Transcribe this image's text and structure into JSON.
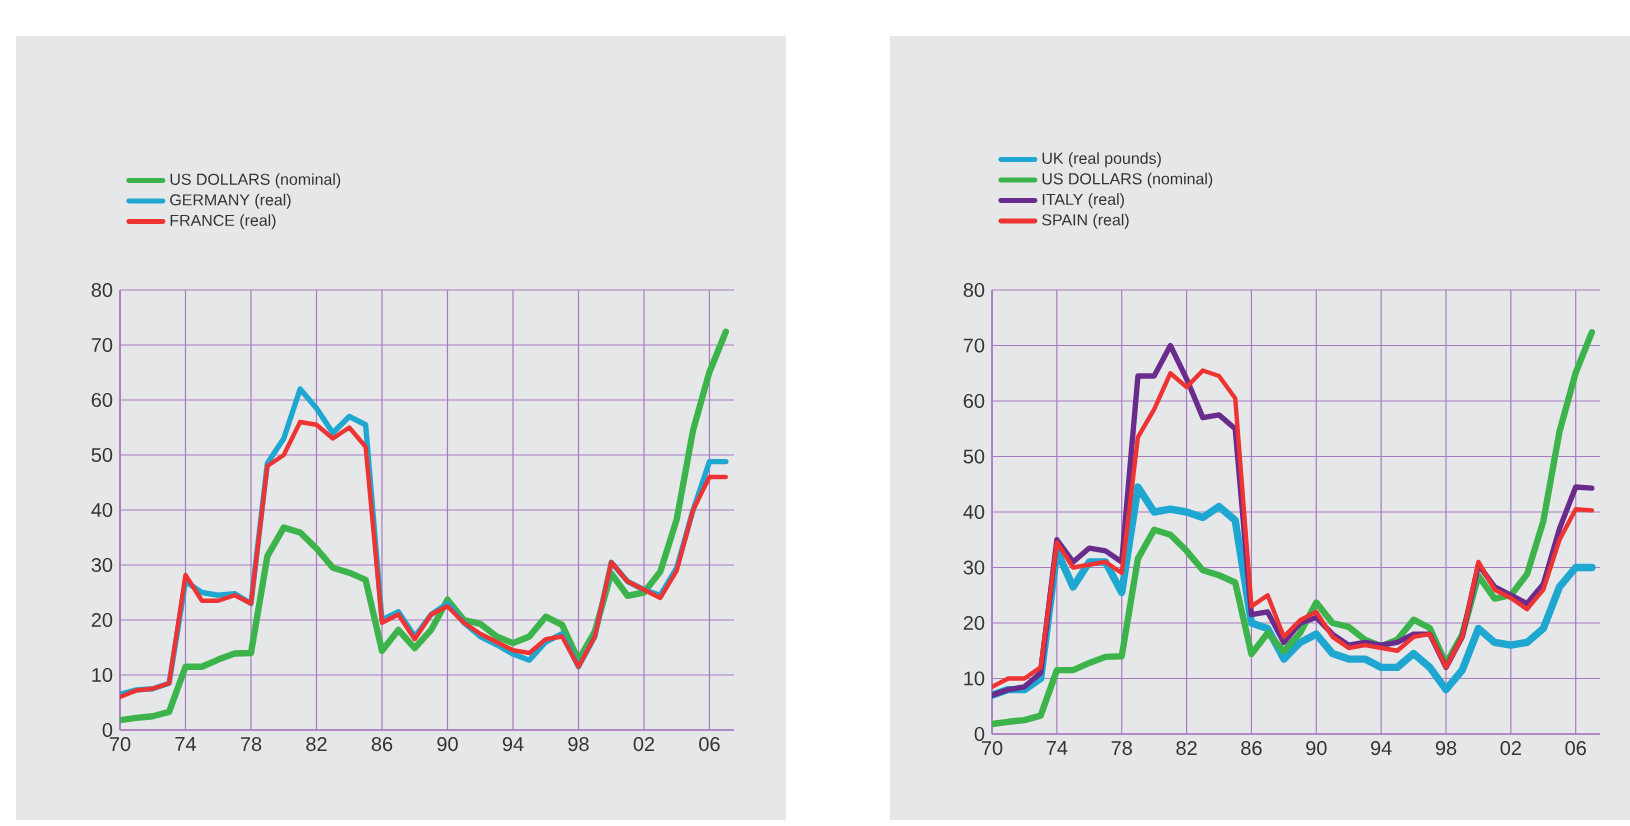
{
  "chart_data": [
    {
      "type": "line",
      "x": [
        1970,
        1971,
        1972,
        1973,
        1974,
        1975,
        1976,
        1977,
        1978,
        1979,
        1980,
        1981,
        1982,
        1983,
        1984,
        1985,
        1986,
        1987,
        1988,
        1989,
        1990,
        1991,
        1992,
        1993,
        1994,
        1995,
        1996,
        1997,
        1998,
        1999,
        2000,
        2001,
        2002,
        2003,
        2004,
        2005,
        2006,
        2007
      ],
      "xlim": [
        1970,
        2007.5
      ],
      "ylim": [
        0,
        80
      ],
      "xticks": [
        {
          "value": 1970,
          "label": "70"
        },
        {
          "value": 1974,
          "label": "74"
        },
        {
          "value": 1978,
          "label": "78"
        },
        {
          "value": 1982,
          "label": "82"
        },
        {
          "value": 1986,
          "label": "86"
        },
        {
          "value": 1990,
          "label": "90"
        },
        {
          "value": 1994,
          "label": "94"
        },
        {
          "value": 1998,
          "label": "98"
        },
        {
          "value": 2002,
          "label": "02"
        },
        {
          "value": 2006,
          "label": "06"
        }
      ],
      "yticks": [
        0,
        10,
        20,
        30,
        40,
        50,
        60,
        70,
        80
      ],
      "grid": true,
      "legend": "top left",
      "line_style": "solid",
      "series": [
        {
          "name": "US DOLLARS (nominal)",
          "color": "#3cb44b",
          "values": [
            1.8,
            2.2,
            2.5,
            3.3,
            11.5,
            11.5,
            12.8,
            13.9,
            14,
            31.6,
            36.8,
            35.9,
            33,
            29.5,
            28.6,
            27.3,
            14.4,
            18.2,
            14.9,
            18.2,
            23.7,
            20,
            19.3,
            17,
            15.8,
            17,
            20.6,
            19.1,
            12.7,
            17.9,
            28.5,
            24.4,
            25,
            28.8,
            38.3,
            54.5,
            65.1,
            72.4
          ]
        },
        {
          "name": "GERMANY (real)",
          "color": "#1ea7d0",
          "values": [
            6.5,
            7.3,
            7.5,
            8.5,
            27,
            25,
            24.5,
            24.8,
            23,
            48.5,
            53,
            62,
            58.5,
            54,
            57,
            55.5,
            20,
            21.5,
            17,
            21,
            23,
            19.5,
            17,
            15.5,
            13.8,
            12.7,
            16,
            17.5,
            11.5,
            17,
            30.5,
            27,
            25.5,
            24.5,
            29.5,
            40,
            48.8,
            48.8
          ]
        },
        {
          "name": "FRANCE (real)",
          "color": "#ee3333",
          "values": [
            6,
            7.2,
            7.5,
            8.5,
            28.2,
            23.5,
            23.5,
            24.5,
            23,
            48,
            50,
            56,
            55.5,
            53,
            55,
            51.5,
            19.5,
            21,
            16.5,
            21,
            22.5,
            19.5,
            17.5,
            16,
            14.5,
            14,
            16.5,
            17,
            11.5,
            17,
            30.5,
            27,
            25.5,
            24,
            29,
            40,
            46,
            46
          ]
        }
      ]
    },
    {
      "type": "line",
      "x": [
        1970,
        1971,
        1972,
        1973,
        1974,
        1975,
        1976,
        1977,
        1978,
        1979,
        1980,
        1981,
        1982,
        1983,
        1984,
        1985,
        1986,
        1987,
        1988,
        1989,
        1990,
        1991,
        1992,
        1993,
        1994,
        1995,
        1996,
        1997,
        1998,
        1999,
        2000,
        2001,
        2002,
        2003,
        2004,
        2005,
        2006,
        2007
      ],
      "xlim": [
        1970,
        2007.5
      ],
      "ylim": [
        0,
        80
      ],
      "xticks": [
        {
          "value": 1970,
          "label": "70"
        },
        {
          "value": 1974,
          "label": "74"
        },
        {
          "value": 1978,
          "label": "78"
        },
        {
          "value": 1982,
          "label": "82"
        },
        {
          "value": 1986,
          "label": "86"
        },
        {
          "value": 1990,
          "label": "90"
        },
        {
          "value": 1994,
          "label": "94"
        },
        {
          "value": 1998,
          "label": "98"
        },
        {
          "value": 2002,
          "label": "02"
        },
        {
          "value": 2006,
          "label": "06"
        }
      ],
      "yticks": [
        0,
        10,
        20,
        30,
        40,
        50,
        60,
        70,
        80
      ],
      "grid": true,
      "legend": "top left",
      "line_style": "solid",
      "series": [
        {
          "name": "UK (real pounds)",
          "color": "#1ea7d0",
          "values": [
            7,
            8,
            8,
            10,
            33,
            26.5,
            31,
            31,
            25.5,
            44.5,
            40,
            40.5,
            40,
            39,
            41,
            38.5,
            20,
            19,
            13.5,
            16.5,
            18,
            14.5,
            13.5,
            13.5,
            12,
            12,
            14.5,
            12,
            8,
            11.5,
            19,
            16.5,
            16,
            16.5,
            19,
            26.5,
            30,
            30
          ]
        },
        {
          "name": "US DOLLARS (nominal)",
          "color": "#3cb44b",
          "values": [
            1.8,
            2.2,
            2.5,
            3.3,
            11.5,
            11.5,
            12.8,
            13.9,
            14,
            31.6,
            36.8,
            35.9,
            33,
            29.5,
            28.6,
            27.3,
            14.4,
            18.2,
            14.9,
            18.2,
            23.7,
            20,
            19.3,
            17,
            15.8,
            17,
            20.6,
            19.1,
            12.7,
            17.9,
            28.5,
            24.4,
            25,
            28.8,
            38.3,
            54.5,
            65.1,
            72.4
          ]
        },
        {
          "name": "ITALY (real)",
          "color": "#6a2c8c",
          "values": [
            7,
            8,
            8.5,
            11,
            35,
            31,
            33.5,
            33,
            31,
            64.5,
            64.5,
            70,
            64,
            57,
            57.5,
            55,
            21.5,
            22,
            16.5,
            20,
            21,
            18,
            16,
            16.5,
            16,
            16.5,
            18,
            18,
            12,
            17.5,
            30.5,
            26.5,
            25,
            23.5,
            27,
            37,
            44.5,
            44.3
          ]
        },
        {
          "name": "SPAIN (real)",
          "color": "#ee3333",
          "values": [
            8.5,
            10,
            10,
            12,
            34.5,
            30,
            30.5,
            31,
            29,
            53.5,
            58.5,
            65,
            62.5,
            65.5,
            64.5,
            60.5,
            23,
            25,
            17.5,
            20.5,
            22,
            17.5,
            15.5,
            16,
            15.5,
            15,
            17.5,
            18,
            12,
            17.5,
            31,
            26,
            24.5,
            22.5,
            26,
            35,
            40.5,
            40.3
          ]
        }
      ]
    }
  ]
}
